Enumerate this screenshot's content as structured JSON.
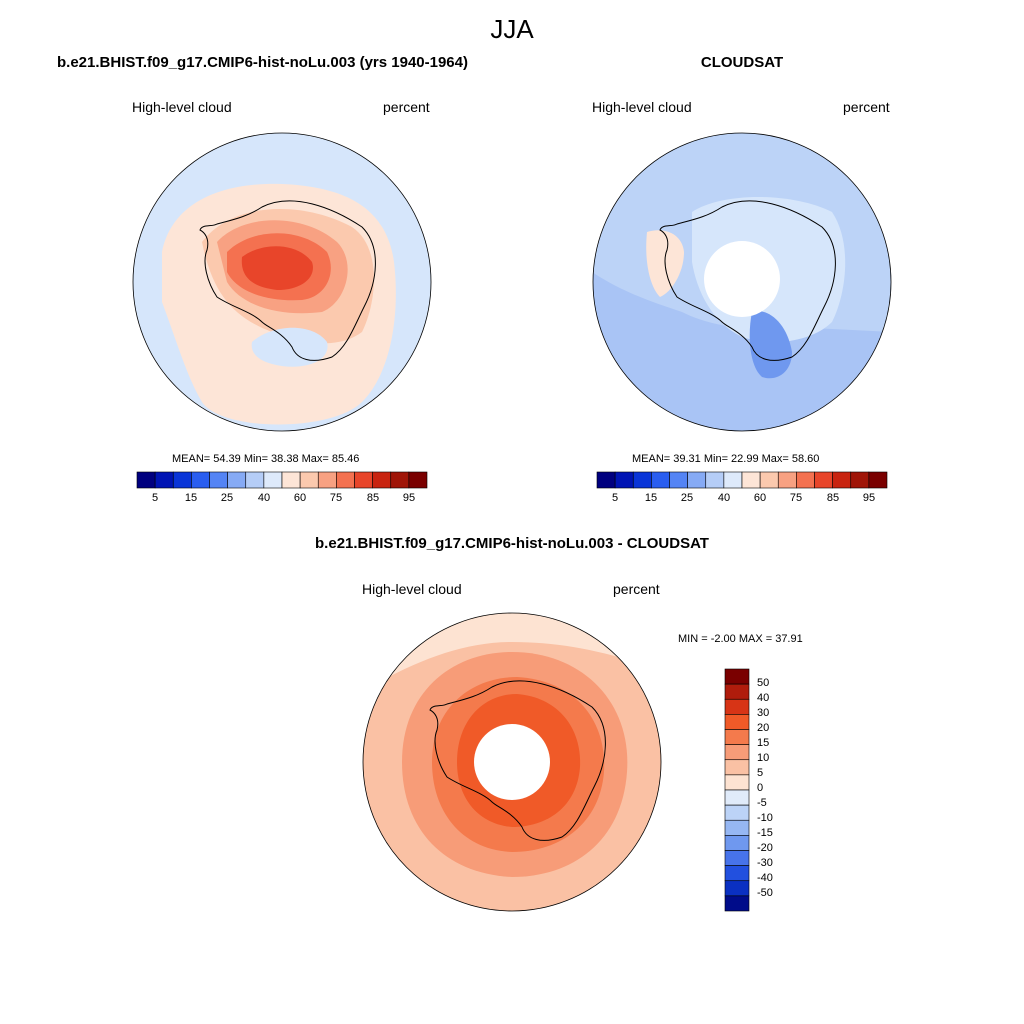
{
  "figure": {
    "title": "JJA"
  },
  "panels": [
    {
      "title": "b.e21.BHIST.f09_g17.CMIP6-hist-noLu.003 (yrs 1940-1964)",
      "left_label": "High-level cloud",
      "right_label": "percent",
      "stats": "MEAN=  54.39  Min=  38.38  Max=  85.46"
    },
    {
      "title": "CLOUDSAT",
      "left_label": "High-level cloud",
      "right_label": "percent",
      "stats": "MEAN=  39.31  Min=  22.99  Max=  58.60"
    },
    {
      "title": "b.e21.BHIST.f09_g17.CMIP6-hist-noLu.003 - CLOUDSAT",
      "left_label": "High-level cloud",
      "right_label": "percent",
      "stats": "MIN =  -2.00 MAX =  37.91"
    }
  ],
  "colorbars": {
    "absolute": {
      "tick_labels": [
        "5",
        "15",
        "25",
        "40",
        "60",
        "75",
        "85",
        "95"
      ],
      "colors": [
        "#00007f",
        "#0014b4",
        "#0a35d8",
        "#2a5ef0",
        "#5484f5",
        "#86aaf5",
        "#b5cdf7",
        "#deeafb",
        "#fde5d7",
        "#fbc9ae",
        "#f8a182",
        "#f47150",
        "#e8452a",
        "#c82410",
        "#a01508",
        "#7a0000"
      ]
    },
    "difference": {
      "tick_labels": [
        "50",
        "40",
        "30",
        "20",
        "15",
        "10",
        "5",
        "0",
        "-5",
        "-10",
        "-15",
        "-20",
        "-30",
        "-40",
        "-50"
      ],
      "colors": [
        "#7a0000",
        "#b01c0c",
        "#d73416",
        "#f05a28",
        "#f47a4c",
        "#f79c78",
        "#fac1a4",
        "#fde3d2",
        "#e0ebfa",
        "#bcd3f7",
        "#96b7f3",
        "#6f98ef",
        "#4773ea",
        "#2250df",
        "#0a30c2",
        "#000c8a"
      ]
    }
  },
  "chart_data": [
    {
      "type": "heatmap",
      "title": "b.e21.BHIST.f09_g17.CMIP6-hist-noLu.003 (yrs 1940-1964)",
      "field": "High-level cloud",
      "units": "percent",
      "season": "JJA",
      "mean": 54.39,
      "min": 38.38,
      "max": 85.46,
      "contour_levels": [
        5,
        10,
        15,
        20,
        25,
        30,
        40,
        50,
        60,
        70,
        75,
        80,
        85,
        90,
        95
      ]
    },
    {
      "type": "heatmap",
      "title": "CLOUDSAT",
      "field": "High-level cloud",
      "units": "percent",
      "season": "JJA",
      "mean": 39.31,
      "min": 22.99,
      "max": 58.6,
      "contour_levels": [
        5,
        10,
        15,
        20,
        25,
        30,
        40,
        50,
        60,
        70,
        75,
        80,
        85,
        90,
        95
      ]
    },
    {
      "type": "heatmap",
      "title": "b.e21.BHIST.f09_g17.CMIP6-hist-noLu.003 - CLOUDSAT",
      "field": "High-level cloud",
      "units": "percent",
      "season": "JJA",
      "min": -2.0,
      "max": 37.91,
      "contour_levels": [
        -50,
        -40,
        -30,
        -20,
        -15,
        -10,
        -5,
        0,
        5,
        10,
        15,
        20,
        30,
        40,
        50
      ]
    }
  ]
}
